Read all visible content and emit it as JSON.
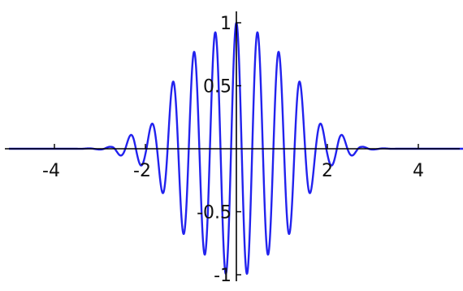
{
  "chart_data": {
    "type": "line",
    "title": "",
    "xlabel": "",
    "ylabel": "",
    "xlim": [
      -5,
      5
    ],
    "ylim": [
      -1.1,
      1.1
    ],
    "grid": false,
    "legend": "none",
    "x_ticks": [
      {
        "value": -4,
        "label": "-4"
      },
      {
        "value": -2,
        "label": "-2"
      },
      {
        "value": 2,
        "label": "2"
      },
      {
        "value": 4,
        "label": "4"
      }
    ],
    "y_ticks": [
      {
        "value": 1,
        "label": "1"
      },
      {
        "value": 0.5,
        "label": "0.5"
      },
      {
        "value": -0.5,
        "label": "-0.5"
      },
      {
        "value": -1,
        "label": "-1"
      }
    ],
    "x": [
      -5,
      -4.5,
      -4,
      -3.5,
      -3,
      -2.75,
      -2.5,
      -2.25,
      -2,
      -1.75,
      -1.5,
      -1.25,
      -1,
      -0.75,
      -0.5,
      -0.25,
      0,
      0.25,
      0.5,
      0.75,
      1,
      1.25,
      1.5,
      1.75,
      2,
      2.25,
      2.5,
      2.75,
      3,
      3.5,
      4,
      4.5,
      5
    ],
    "series": [
      {
        "color": "#2222ee",
        "values": [
          0,
          0,
          0,
          0,
          0.006,
          0.017,
          0.063,
          0.128,
          0.136,
          0.245,
          0.454,
          0.637,
          0.749,
          0.821,
          0.913,
          0.992,
          1.0,
          0.992,
          0.913,
          0.821,
          0.749,
          0.637,
          0.454,
          0.245,
          0.136,
          0.128,
          0.063,
          0.017,
          0.006,
          0,
          0,
          0,
          0
        ],
        "envelope_note": "amplitude values"
      }
    ],
    "axis_color": "#000000"
  }
}
